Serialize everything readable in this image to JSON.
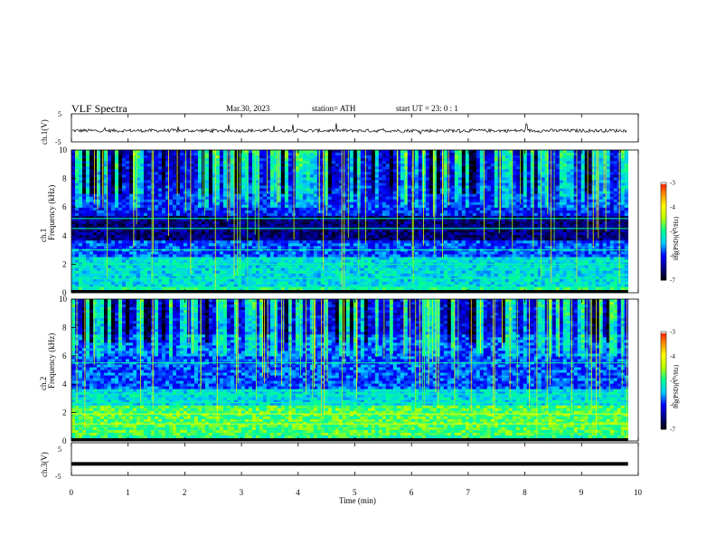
{
  "header": {
    "title": "VLF  Spectra",
    "date": "Mar.30, 2023",
    "station": "station= ATH",
    "start": "start  UT  =    23: 0   : 1"
  },
  "chart_data": [
    {
      "type": "line",
      "panel": "ch1-waveform",
      "ylabel": "ch.1(V)",
      "ylim": [
        -5,
        5
      ],
      "y_ticks": [
        "5",
        "-5"
      ],
      "series_color": "#000000",
      "description_of_values": "noisy trace around -1 V with sparse spikes"
    },
    {
      "type": "heatmap",
      "panel": "ch1-spectrogram",
      "ylabel": "ch.1\nFrequency  (kHz)",
      "ylim": [
        0,
        10
      ],
      "y_ticks": [
        "0",
        "2",
        "4",
        "6",
        "8",
        "10"
      ],
      "colorbar": {
        "label": "log(PSD)(V²/Hz)",
        "range": [
          -7,
          -3
        ],
        "ticks": [
          "-3",
          "-4",
          "-5",
          "-6",
          "-7"
        ]
      }
    },
    {
      "type": "heatmap",
      "panel": "ch2-spectrogram",
      "ylabel": "ch.2\nFrequency  (kHz)",
      "ylim": [
        0,
        10
      ],
      "y_ticks": [
        "0",
        "2",
        "4",
        "6",
        "8",
        "10"
      ],
      "colorbar": {
        "label": "log(PSD)(V²/Hz)",
        "range": [
          -7,
          -3
        ],
        "ticks": [
          "-3",
          "-4",
          "-5",
          "-6",
          "-7"
        ]
      }
    },
    {
      "type": "line",
      "panel": "ch3-waveform",
      "ylabel": "ch.3(V)",
      "ylim": [
        -5,
        5
      ],
      "y_ticks": [
        "5",
        "-5"
      ],
      "values_constant": -1.5
    }
  ],
  "x_axis": {
    "label": "Time  (min)",
    "range": [
      0,
      10
    ],
    "ticks": [
      "0",
      "1",
      "2",
      "3",
      "4",
      "5",
      "6",
      "7",
      "8",
      "9",
      "10"
    ],
    "data_end": 9.82
  },
  "colors": {
    "colormap": [
      "#000000",
      "#000080",
      "#0000ff",
      "#00c8ff",
      "#00ff96",
      "#b4ff00",
      "#ffff00",
      "#ff8c00",
      "#ff0000",
      "#ffffff"
    ]
  }
}
